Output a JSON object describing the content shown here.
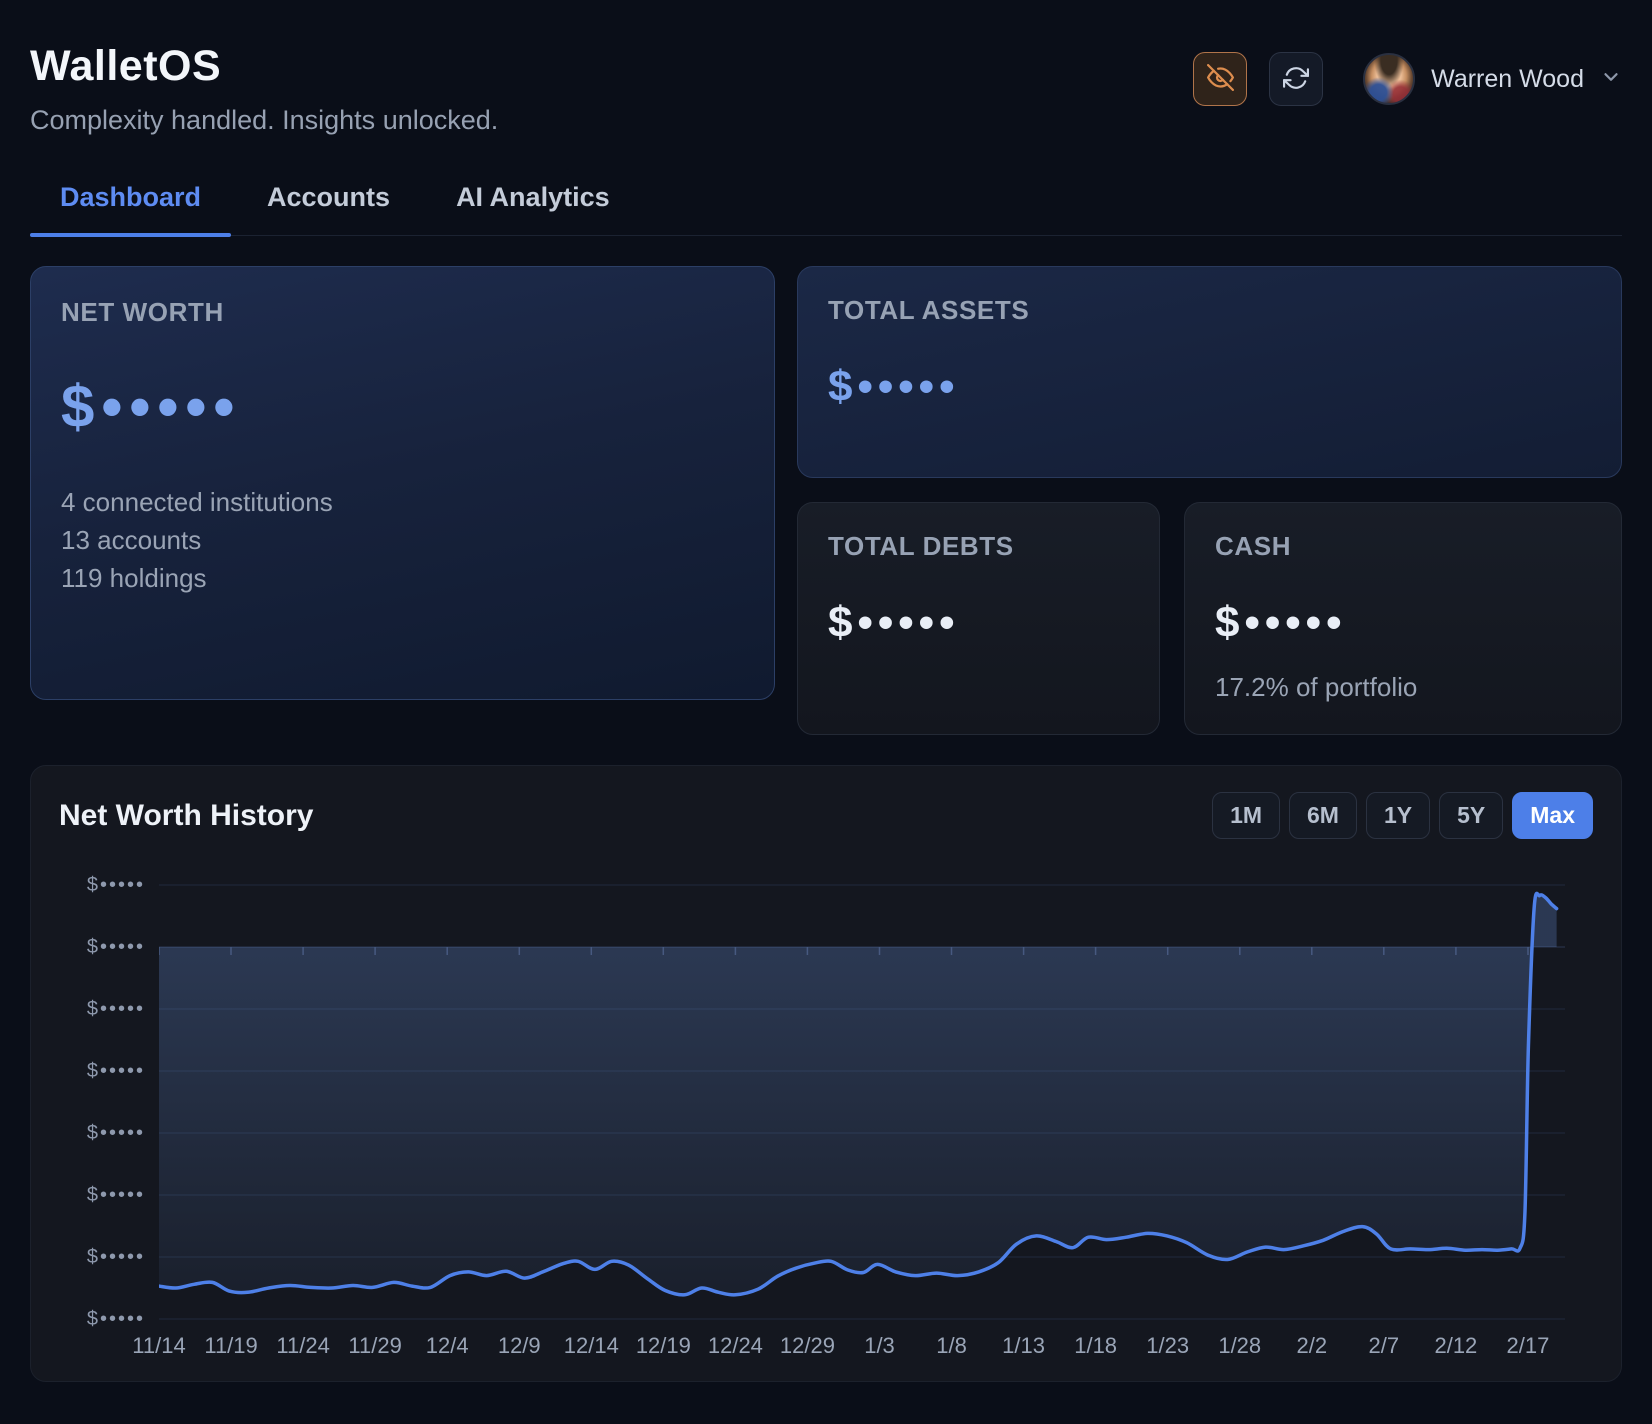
{
  "header": {
    "title": "WalletOS",
    "subtitle": "Complexity handled. Insights unlocked.",
    "user_name": "Warren Wood"
  },
  "tabs": [
    {
      "label": "Dashboard",
      "active": true
    },
    {
      "label": "Accounts",
      "active": false
    },
    {
      "label": "AI Analytics",
      "active": false
    }
  ],
  "cards": {
    "net_worth": {
      "label": "NET WORTH",
      "masked_value": "$•••••",
      "meta": [
        "4 connected institutions",
        "13 accounts",
        "119 holdings"
      ]
    },
    "total_assets": {
      "label": "TOTAL ASSETS",
      "masked_value": "$•••••"
    },
    "total_debts": {
      "label": "TOTAL DEBTS",
      "masked_value": "$•••••"
    },
    "cash": {
      "label": "CASH",
      "masked_value": "$•••••",
      "meta": "17.2% of portfolio"
    }
  },
  "chart": {
    "title": "Net Worth History",
    "ranges": [
      {
        "label": "1M",
        "active": false
      },
      {
        "label": "6M",
        "active": false
      },
      {
        "label": "1Y",
        "active": false
      },
      {
        "label": "5Y",
        "active": false
      },
      {
        "label": "Max",
        "active": true
      }
    ]
  },
  "chart_data": {
    "type": "area",
    "title": "Net Worth History",
    "grid": true,
    "legend": false,
    "x_labels": [
      "11/14",
      "11/19",
      "11/24",
      "11/29",
      "12/4",
      "12/9",
      "12/14",
      "12/19",
      "12/24",
      "12/29",
      "1/3",
      "1/8",
      "1/13",
      "1/18",
      "1/23",
      "1/28",
      "2/2",
      "2/7",
      "2/12",
      "2/17"
    ],
    "y_axis": {
      "labels": [
        "$•••••",
        "$•••••",
        "$•••••",
        "$•••••",
        "$•••••",
        "$•••••",
        "$•••••",
        "$•••••"
      ],
      "masked": true,
      "baseline_index": 1,
      "baseline_value": 0,
      "gridline_step_units": 1
    },
    "note": "Amounts hidden by privacy mode; point values are in gridline units relative to the zero baseline (2nd gridline), x is fraction of plot width.",
    "series": [
      {
        "name": "Net Worth",
        "color": "#4e80e8",
        "points": [
          [
            0.0,
            -5.47
          ],
          [
            0.012,
            -5.5
          ],
          [
            0.025,
            -5.44
          ],
          [
            0.038,
            -5.41
          ],
          [
            0.05,
            -5.55
          ],
          [
            0.063,
            -5.57
          ],
          [
            0.078,
            -5.5
          ],
          [
            0.093,
            -5.46
          ],
          [
            0.108,
            -5.49
          ],
          [
            0.123,
            -5.5
          ],
          [
            0.138,
            -5.46
          ],
          [
            0.152,
            -5.49
          ],
          [
            0.167,
            -5.41
          ],
          [
            0.18,
            -5.47
          ],
          [
            0.193,
            -5.49
          ],
          [
            0.207,
            -5.3
          ],
          [
            0.22,
            -5.24
          ],
          [
            0.233,
            -5.3
          ],
          [
            0.247,
            -5.23
          ],
          [
            0.26,
            -5.34
          ],
          [
            0.273,
            -5.24
          ],
          [
            0.287,
            -5.11
          ],
          [
            0.298,
            -5.07
          ],
          [
            0.31,
            -5.2
          ],
          [
            0.322,
            -5.07
          ],
          [
            0.334,
            -5.13
          ],
          [
            0.348,
            -5.36
          ],
          [
            0.36,
            -5.54
          ],
          [
            0.374,
            -5.61
          ],
          [
            0.386,
            -5.5
          ],
          [
            0.398,
            -5.57
          ],
          [
            0.41,
            -5.61
          ],
          [
            0.426,
            -5.52
          ],
          [
            0.44,
            -5.31
          ],
          [
            0.453,
            -5.18
          ],
          [
            0.466,
            -5.1
          ],
          [
            0.478,
            -5.07
          ],
          [
            0.49,
            -5.21
          ],
          [
            0.501,
            -5.25
          ],
          [
            0.511,
            -5.12
          ],
          [
            0.524,
            -5.24
          ],
          [
            0.538,
            -5.3
          ],
          [
            0.553,
            -5.26
          ],
          [
            0.568,
            -5.3
          ],
          [
            0.583,
            -5.24
          ],
          [
            0.597,
            -5.09
          ],
          [
            0.61,
            -4.79
          ],
          [
            0.624,
            -4.66
          ],
          [
            0.638,
            -4.75
          ],
          [
            0.65,
            -4.85
          ],
          [
            0.661,
            -4.68
          ],
          [
            0.674,
            -4.72
          ],
          [
            0.688,
            -4.68
          ],
          [
            0.703,
            -4.62
          ],
          [
            0.717,
            -4.66
          ],
          [
            0.731,
            -4.77
          ],
          [
            0.746,
            -4.97
          ],
          [
            0.76,
            -5.04
          ],
          [
            0.774,
            -4.92
          ],
          [
            0.787,
            -4.84
          ],
          [
            0.8,
            -4.88
          ],
          [
            0.814,
            -4.82
          ],
          [
            0.828,
            -4.73
          ],
          [
            0.842,
            -4.59
          ],
          [
            0.856,
            -4.51
          ],
          [
            0.866,
            -4.63
          ],
          [
            0.876,
            -4.87
          ],
          [
            0.89,
            -4.87
          ],
          [
            0.903,
            -4.88
          ],
          [
            0.916,
            -4.86
          ],
          [
            0.929,
            -4.89
          ],
          [
            0.941,
            -4.88
          ],
          [
            0.952,
            -4.89
          ],
          [
            0.962,
            -4.87
          ],
          [
            0.968,
            -4.86
          ],
          [
            0.9715,
            -4.3
          ],
          [
            0.974,
            -1.6
          ],
          [
            0.978,
            0.62
          ],
          [
            0.982,
            0.83
          ],
          [
            0.986,
            0.8
          ],
          [
            0.99,
            0.7
          ],
          [
            0.994,
            0.62
          ]
        ]
      }
    ]
  },
  "colors": {
    "accent_blue": "#4d7fe8",
    "masked_blue": "#7aa2ec",
    "line_blue": "#4e80e8",
    "privacy_orange": "#dd8d4e"
  }
}
